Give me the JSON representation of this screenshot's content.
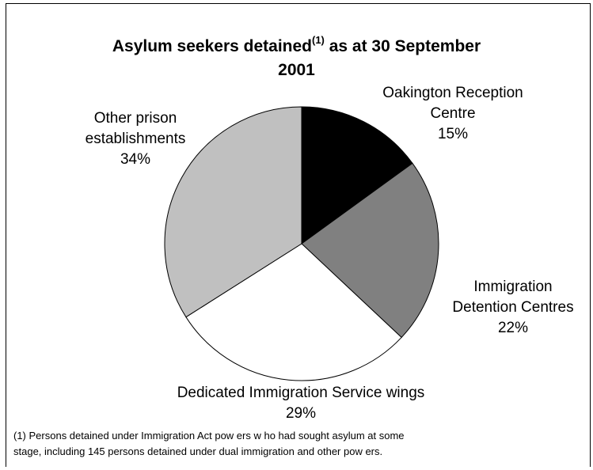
{
  "chart_data": {
    "type": "pie",
    "title_main": "Asylum seekers detained",
    "title_sup": "(1)",
    "title_rest": " as at 30 September",
    "title_line2": "2001",
    "slices": [
      {
        "label_lines": [
          "Oakington Reception",
          "Centre"
        ],
        "percent_label": "15%",
        "value": 15,
        "color": "#000000"
      },
      {
        "label_lines": [
          "Immigration",
          "Detention Centres"
        ],
        "percent_label": "22%",
        "value": 22,
        "color": "#808080"
      },
      {
        "label_lines": [
          "Dedicated Immigration Service wings"
        ],
        "percent_label": "29%",
        "value": 29,
        "color": "#ffffff"
      },
      {
        "label_lines": [
          "Other prison",
          "establishments"
        ],
        "percent_label": "34%",
        "value": 34,
        "color": "#c0c0c0"
      }
    ],
    "footnote_lines": [
      "(1) Persons detained under Immigration Act pow ers w ho had sought asylum at some",
      "stage, including 145 persons detained under dual immigration and other pow ers."
    ]
  }
}
